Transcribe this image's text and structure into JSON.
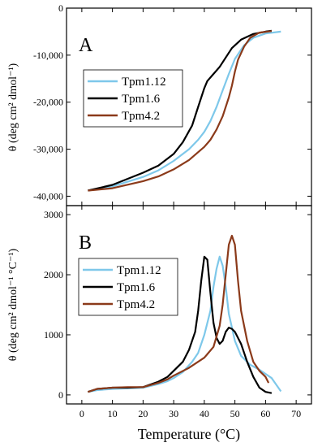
{
  "chart_data": [
    {
      "type": "line",
      "panel_label": "A",
      "ylabel": "θ (deg cm² dmol⁻¹)",
      "xlim": [
        -5,
        75
      ],
      "ylim": [
        -42000,
        0
      ],
      "yticks": [
        0,
        -10000,
        -20000,
        -30000,
        -40000
      ],
      "ytick_labels": [
        "0",
        "-10,000",
        "-20,000",
        "-30,000",
        "-40,000"
      ],
      "grid": false,
      "legend_position": "center-left",
      "series": [
        {
          "name": "Tpm1.12",
          "color": "#7ec8ea",
          "x": [
            2,
            10,
            20,
            25,
            30,
            35,
            38,
            40,
            42,
            44,
            46,
            48,
            50,
            53,
            56,
            60,
            65
          ],
          "y": [
            -38800,
            -37900,
            -35900,
            -34500,
            -32500,
            -30000,
            -28000,
            -26300,
            -24000,
            -21000,
            -17500,
            -14000,
            -10800,
            -7900,
            -6300,
            -5400,
            -5000
          ]
        },
        {
          "name": "Tpm1.6",
          "color": "#000000",
          "x": [
            2,
            10,
            20,
            25,
            30,
            33,
            36,
            38,
            40,
            41,
            43,
            45,
            47,
            49,
            52,
            56,
            60,
            62
          ],
          "y": [
            -38800,
            -37600,
            -35000,
            -33500,
            -31000,
            -28500,
            -25000,
            -21000,
            -17000,
            -15500,
            -14000,
            -12500,
            -10500,
            -8500,
            -6700,
            -5500,
            -5000,
            -4800
          ]
        },
        {
          "name": "Tpm4.2",
          "color": "#8b3a1a",
          "x": [
            2,
            10,
            20,
            25,
            30,
            35,
            40,
            42,
            44,
            46,
            48,
            49,
            50,
            51,
            53,
            55,
            58,
            62
          ],
          "y": [
            -38800,
            -38300,
            -36800,
            -35800,
            -34300,
            -32300,
            -29500,
            -28000,
            -25800,
            -23000,
            -19000,
            -16500,
            -13500,
            -11000,
            -8200,
            -6300,
            -5200,
            -4900
          ]
        }
      ]
    },
    {
      "type": "line",
      "panel_label": "B",
      "xlabel": "Temperature (°C)",
      "ylabel": "θ (deg cm² dmol⁻¹ °C⁻¹)",
      "xlim": [
        -5,
        75
      ],
      "ylim": [
        -150,
        3150
      ],
      "xticks": [
        0,
        10,
        20,
        30,
        40,
        50,
        60,
        70
      ],
      "yticks": [
        0,
        1000,
        2000,
        3000
      ],
      "grid": false,
      "legend_position": "center-left",
      "series": [
        {
          "name": "Tpm1.12",
          "color": "#7ec8ea",
          "x": [
            2,
            5,
            10,
            15,
            20,
            25,
            28,
            30,
            33,
            36,
            38,
            40,
            42,
            43,
            44,
            45,
            46,
            47,
            48,
            50,
            52,
            55,
            58,
            62,
            65
          ],
          "y": [
            50,
            80,
            100,
            110,
            120,
            180,
            230,
            280,
            380,
            550,
            700,
            1000,
            1400,
            1800,
            2100,
            2300,
            2150,
            1800,
            1350,
            900,
            650,
            500,
            420,
            280,
            60
          ]
        },
        {
          "name": "Tpm1.6",
          "color": "#000000",
          "x": [
            2,
            5,
            10,
            15,
            20,
            25,
            28,
            30,
            33,
            35,
            37,
            38,
            39,
            40,
            41,
            42,
            43,
            44,
            45,
            46,
            47,
            48,
            49,
            50,
            52,
            54,
            56,
            58,
            60,
            62
          ],
          "y": [
            50,
            100,
            120,
            120,
            130,
            220,
            300,
            400,
            550,
            750,
            1050,
            1400,
            1900,
            2300,
            2250,
            1700,
            1200,
            950,
            850,
            900,
            1050,
            1120,
            1100,
            1050,
            850,
            550,
            300,
            120,
            50,
            30
          ]
        },
        {
          "name": "Tpm4.2",
          "color": "#8b3a1a",
          "x": [
            2,
            5,
            10,
            15,
            20,
            25,
            28,
            30,
            35,
            40,
            43,
            45,
            46,
            47,
            48,
            49,
            50,
            51,
            52,
            54,
            56,
            58,
            60,
            61
          ],
          "y": [
            50,
            100,
            120,
            130,
            130,
            200,
            260,
            320,
            450,
            620,
            800,
            1150,
            1500,
            2000,
            2500,
            2650,
            2500,
            1900,
            1400,
            900,
            550,
            400,
            300,
            200
          ]
        }
      ]
    }
  ]
}
